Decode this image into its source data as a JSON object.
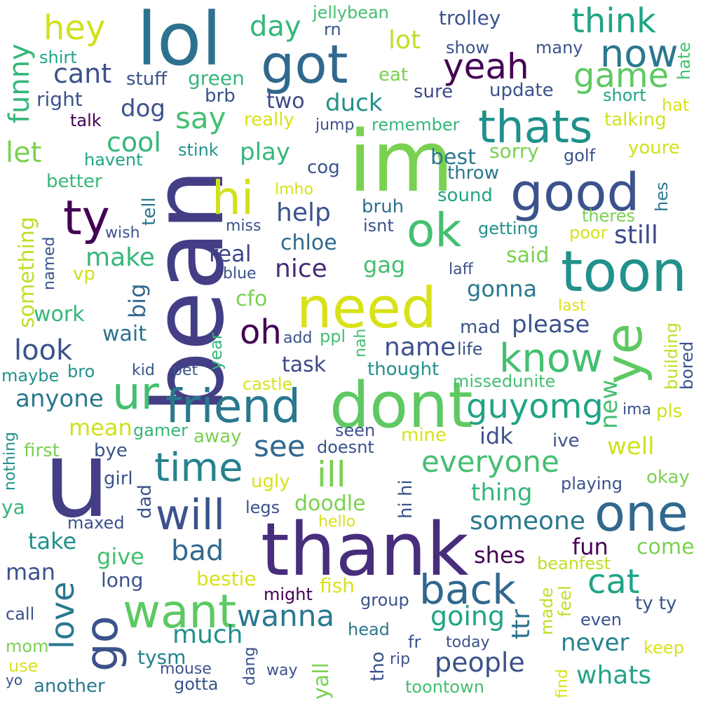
{
  "words": [
    {
      "text": "bean",
      "color": "#433e85"
    },
    {
      "text": "im",
      "color": "#7ad151"
    },
    {
      "text": "lol",
      "color": "#2c728e"
    },
    {
      "text": "u",
      "color": "#433e85"
    },
    {
      "text": "thank",
      "color": "#472d7b"
    },
    {
      "text": "dont",
      "color": "#5ec962"
    },
    {
      "text": "need",
      "color": "#d8e219"
    },
    {
      "text": "toon",
      "color": "#21918c"
    },
    {
      "text": "friend",
      "color": "#2a788e"
    },
    {
      "text": "good",
      "color": "#3b528b"
    },
    {
      "text": "got",
      "color": "#31688e"
    },
    {
      "text": "thats",
      "color": "#21918c"
    },
    {
      "text": "ye",
      "color": "#5ec962"
    },
    {
      "text": "one",
      "color": "#31688e"
    },
    {
      "text": "want",
      "color": "#5ec962"
    },
    {
      "text": "ok",
      "color": "#44bf70"
    },
    {
      "text": "hi",
      "color": "#d0e11c"
    },
    {
      "text": "ty",
      "color": "#440154"
    },
    {
      "text": "ur",
      "color": "#44bf70"
    },
    {
      "text": "know",
      "color": "#44bf70"
    },
    {
      "text": "guyomg",
      "color": "#20a486"
    },
    {
      "text": "will",
      "color": "#3b528b"
    },
    {
      "text": "back",
      "color": "#31688e"
    },
    {
      "text": "go",
      "color": "#3b528b"
    },
    {
      "text": "time",
      "color": "#26828e"
    },
    {
      "text": "think",
      "color": "#20a486"
    },
    {
      "text": "now",
      "color": "#2a788e"
    },
    {
      "text": "yeah",
      "color": "#440154"
    },
    {
      "text": "game",
      "color": "#5ec962"
    },
    {
      "text": "hey",
      "color": "#d0e11c"
    },
    {
      "text": "oh",
      "color": "#440154"
    },
    {
      "text": "ill",
      "color": "#7ad151"
    },
    {
      "text": "love",
      "color": "#2a788e"
    },
    {
      "text": "cat",
      "color": "#20a486"
    },
    {
      "text": "everyone",
      "color": "#44bf70"
    },
    {
      "text": "wanna",
      "color": "#2a788e"
    },
    {
      "text": "see",
      "color": "#31688e"
    },
    {
      "text": "say",
      "color": "#44bf70"
    },
    {
      "text": "day",
      "color": "#35b779"
    },
    {
      "text": "funny",
      "color": "#35b779"
    },
    {
      "text": "cant",
      "color": "#3b528b"
    },
    {
      "text": "look",
      "color": "#3b528b"
    },
    {
      "text": "let",
      "color": "#7ad151"
    },
    {
      "text": "cool",
      "color": "#35b779"
    },
    {
      "text": "bad",
      "color": "#31688e"
    },
    {
      "text": "going",
      "color": "#20a486"
    },
    {
      "text": "people",
      "color": "#3b528b"
    },
    {
      "text": "name",
      "color": "#3b528b"
    },
    {
      "text": "someone",
      "color": "#2a788e"
    },
    {
      "text": "lot",
      "color": "#bddf26"
    },
    {
      "text": "still",
      "color": "#3e4989"
    },
    {
      "text": "nice",
      "color": "#472d7b"
    },
    {
      "text": "help",
      "color": "#3b528b"
    },
    {
      "text": "please",
      "color": "#3b528b"
    },
    {
      "text": "make",
      "color": "#35b779"
    },
    {
      "text": "play",
      "color": "#35b779"
    },
    {
      "text": "anyone",
      "color": "#2a788e"
    },
    {
      "text": "much",
      "color": "#21918c"
    },
    {
      "text": "mean",
      "color": "#d0e11c"
    },
    {
      "text": "whats",
      "color": "#20a486"
    },
    {
      "text": "never",
      "color": "#26828e"
    },
    {
      "text": "ttr",
      "color": "#2c728e"
    },
    {
      "text": "new",
      "color": "#44bf70"
    },
    {
      "text": "duck",
      "color": "#21918c"
    },
    {
      "text": "green",
      "color": "#35b779"
    },
    {
      "text": "dog",
      "color": "#3b528b"
    },
    {
      "text": "well",
      "color": "#d0e11c"
    },
    {
      "text": "thing",
      "color": "#35b779"
    },
    {
      "text": "gonna",
      "color": "#2a788e"
    },
    {
      "text": "gag",
      "color": "#44bf70"
    },
    {
      "text": "chloe",
      "color": "#31688e"
    },
    {
      "text": "real",
      "color": "#3e4989"
    },
    {
      "text": "big",
      "color": "#31688e"
    },
    {
      "text": "take",
      "color": "#21918c"
    },
    {
      "text": "give",
      "color": "#44bf70"
    },
    {
      "text": "work",
      "color": "#35b779"
    },
    {
      "text": "wait",
      "color": "#2c728e"
    },
    {
      "text": "task",
      "color": "#3e4989"
    },
    {
      "text": "doodle",
      "color": "#7ad151"
    },
    {
      "text": "fun",
      "color": "#440154"
    },
    {
      "text": "man",
      "color": "#3b528b"
    },
    {
      "text": "right",
      "color": "#3b528b"
    },
    {
      "text": "two",
      "color": "#3e4989"
    },
    {
      "text": "trolley",
      "color": "#3b528b"
    },
    {
      "text": "sorry",
      "color": "#7ad151"
    },
    {
      "text": "best",
      "color": "#2a788e"
    },
    {
      "text": "come",
      "color": "#7ad151"
    },
    {
      "text": "shes",
      "color": "#440154"
    },
    {
      "text": "idk",
      "color": "#3b528b"
    },
    {
      "text": "something",
      "color": "#bddf26"
    },
    {
      "text": "bestie",
      "color": "#d8e219"
    },
    {
      "text": "fish",
      "color": "#d8e219"
    },
    {
      "text": "said",
      "color": "#7ad151"
    },
    {
      "text": "cfo",
      "color": "#7ad151"
    },
    {
      "text": "long",
      "color": "#3b528b"
    },
    {
      "text": "mad",
      "color": "#3b528b"
    },
    {
      "text": "tysm",
      "color": "#26828e"
    },
    {
      "text": "yall",
      "color": "#7ad151"
    },
    {
      "text": "update",
      "color": "#3b528b"
    },
    {
      "text": "sure",
      "color": "#3e4989"
    },
    {
      "text": "show",
      "color": "#3b528b"
    },
    {
      "text": "many",
      "color": "#3b528b"
    },
    {
      "text": "stuff",
      "color": "#3b528b"
    },
    {
      "text": "brb",
      "color": "#3b528b"
    },
    {
      "text": "eat",
      "color": "#7ad151"
    },
    {
      "text": "really",
      "color": "#d8e219"
    },
    {
      "text": "jump",
      "color": "#3b528b"
    },
    {
      "text": "remember",
      "color": "#35b779"
    },
    {
      "text": "talking",
      "color": "#d0e11c"
    },
    {
      "text": "youre",
      "color": "#d0e11c"
    },
    {
      "text": "short",
      "color": "#20a486"
    },
    {
      "text": "hate",
      "color": "#44bf70"
    },
    {
      "text": "hat",
      "color": "#d8e219"
    },
    {
      "text": "jellybean",
      "color": "#44bf70"
    },
    {
      "text": "rn",
      "color": "#3b528b"
    },
    {
      "text": "shirt",
      "color": "#20a486"
    },
    {
      "text": "talk",
      "color": "#440154"
    },
    {
      "text": "stink",
      "color": "#21918c"
    },
    {
      "text": "havent",
      "color": "#20a486"
    },
    {
      "text": "better",
      "color": "#35b779"
    },
    {
      "text": "tell",
      "color": "#2a788e"
    },
    {
      "text": "cog",
      "color": "#3b528b"
    },
    {
      "text": "throw",
      "color": "#2a788e"
    },
    {
      "text": "golf",
      "color": "#3b528b"
    },
    {
      "text": "sound",
      "color": "#20a486"
    },
    {
      "text": "lmho",
      "color": "#d8e219"
    },
    {
      "text": "bruh",
      "color": "#2c728e"
    },
    {
      "text": "isnt",
      "color": "#3b528b"
    },
    {
      "text": "theres",
      "color": "#7ad151"
    },
    {
      "text": "hes",
      "color": "#2a788e"
    },
    {
      "text": "miss",
      "color": "#3b528b"
    },
    {
      "text": "wish",
      "color": "#3b528b"
    },
    {
      "text": "getting",
      "color": "#21918c"
    },
    {
      "text": "poor",
      "color": "#d8e219"
    },
    {
      "text": "named",
      "color": "#3b528b"
    },
    {
      "text": "vp",
      "color": "#d0e11c"
    },
    {
      "text": "blue",
      "color": "#3b528b"
    },
    {
      "text": "laff",
      "color": "#3b528b"
    },
    {
      "text": "last",
      "color": "#d8e219"
    },
    {
      "text": "building",
      "color": "#bddf26"
    },
    {
      "text": "bored",
      "color": "#3b528b"
    },
    {
      "text": "year",
      "color": "#35b779"
    },
    {
      "text": "add",
      "color": "#3b528b"
    },
    {
      "text": "ppl",
      "color": "#44bf70"
    },
    {
      "text": "nah",
      "color": "#44bf70"
    },
    {
      "text": "life",
      "color": "#3b528b"
    },
    {
      "text": "maybe",
      "color": "#21918c"
    },
    {
      "text": "bro",
      "color": "#21918c"
    },
    {
      "text": "kid",
      "color": "#3b528b"
    },
    {
      "text": "pet",
      "color": "#3b528b"
    },
    {
      "text": "thought",
      "color": "#21918c"
    },
    {
      "text": "castle",
      "color": "#d8e219"
    },
    {
      "text": "missedunite",
      "color": "#44bf70"
    },
    {
      "text": "ima",
      "color": "#3b528b"
    },
    {
      "text": "pls",
      "color": "#d0e11c"
    },
    {
      "text": "nothing",
      "color": "#21918c"
    },
    {
      "text": "gamer",
      "color": "#35b779"
    },
    {
      "text": "away",
      "color": "#7ad151"
    },
    {
      "text": "first",
      "color": "#7ad151"
    },
    {
      "text": "bye",
      "color": "#3b528b"
    },
    {
      "text": "seen",
      "color": "#3b528b"
    },
    {
      "text": "doesnt",
      "color": "#3b528b"
    },
    {
      "text": "mine",
      "color": "#d8e219"
    },
    {
      "text": "ive",
      "color": "#3b528b"
    },
    {
      "text": "girl",
      "color": "#3b528b"
    },
    {
      "text": "hi hi",
      "color": "#3b528b"
    },
    {
      "text": "okay",
      "color": "#7ad151"
    },
    {
      "text": "ugly",
      "color": "#d8e219"
    },
    {
      "text": "playing",
      "color": "#3b528b"
    },
    {
      "text": "dad",
      "color": "#3b528b"
    },
    {
      "text": "ya",
      "color": "#35b779"
    },
    {
      "text": "legs",
      "color": "#3b528b"
    },
    {
      "text": "hello",
      "color": "#d8e219"
    },
    {
      "text": "maxed",
      "color": "#3b528b"
    },
    {
      "text": "beanfest",
      "color": "#bddf26"
    },
    {
      "text": "might",
      "color": "#440154"
    },
    {
      "text": "made",
      "color": "#bddf26"
    },
    {
      "text": "feel",
      "color": "#bddf26"
    },
    {
      "text": "group",
      "color": "#3b528b"
    },
    {
      "text": "ty ty",
      "color": "#3b528b"
    },
    {
      "text": "call",
      "color": "#3b528b"
    },
    {
      "text": "even",
      "color": "#3b528b"
    },
    {
      "text": "head",
      "color": "#2a788e"
    },
    {
      "text": "tho",
      "color": "#3b528b"
    },
    {
      "text": "fr",
      "color": "#3b528b"
    },
    {
      "text": "today",
      "color": "#3b528b"
    },
    {
      "text": "keep",
      "color": "#d8e219"
    },
    {
      "text": "mom",
      "color": "#7ad151"
    },
    {
      "text": "dang",
      "color": "#3b528b"
    },
    {
      "text": "rip",
      "color": "#3b528b"
    },
    {
      "text": "use",
      "color": "#d8e219"
    },
    {
      "text": "mouse",
      "color": "#3b528b"
    },
    {
      "text": "way",
      "color": "#3b528b"
    },
    {
      "text": "find",
      "color": "#d8e219"
    },
    {
      "text": "yo",
      "color": "#3b528b"
    },
    {
      "text": "another",
      "color": "#2a788e"
    },
    {
      "text": "gotta",
      "color": "#3b528b"
    },
    {
      "text": "toontown",
      "color": "#44bf70"
    }
  ]
}
